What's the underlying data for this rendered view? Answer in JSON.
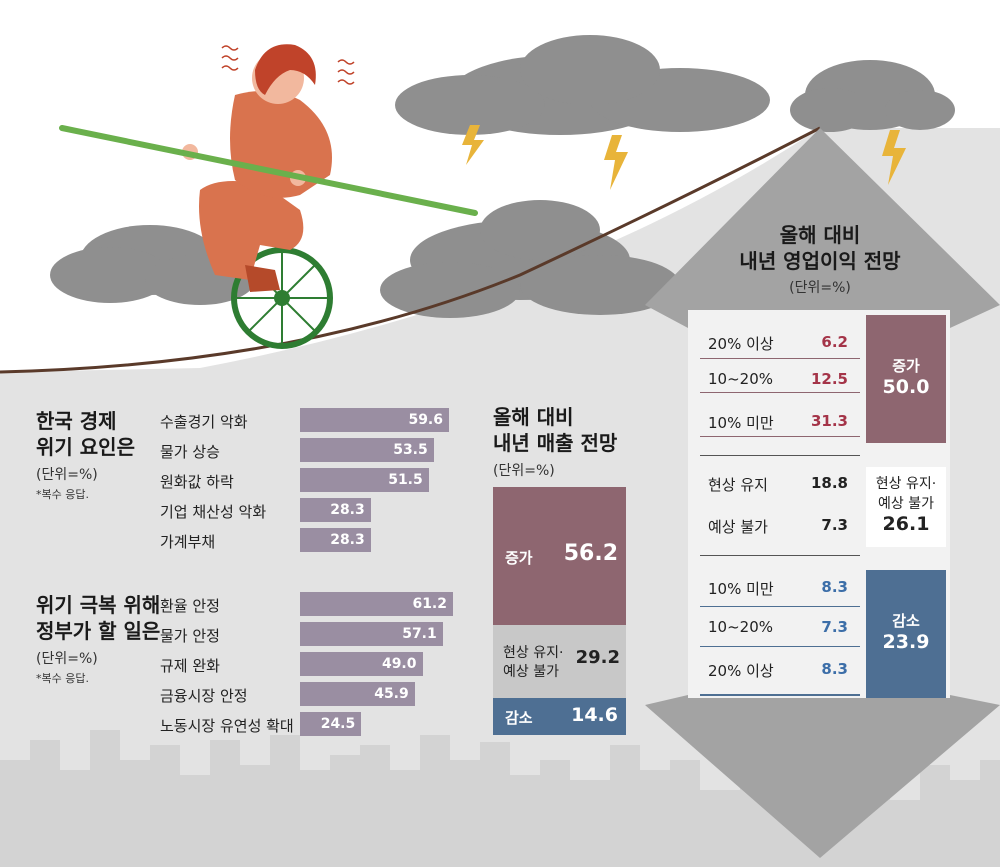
{
  "crisis_factors": {
    "title_line1": "한국 경제",
    "title_line2": "위기 요인은",
    "unit": "(단위=%)",
    "note": "*복수 응답."
  },
  "gov_tasks": {
    "title_line1": "위기 극복 위해",
    "title_line2": "정부가 할 일은",
    "unit": "(단위=%)",
    "note": "*복수 응답."
  },
  "sales": {
    "title_line1": "올해 대비",
    "title_line2": "내년 매출 전망",
    "unit": "(단위=%)",
    "increase_label": "증가",
    "increase_value": "56.2",
    "same_label_line1": "현상 유지·",
    "same_label_line2": "예상 불가",
    "same_value": "29.2",
    "decrease_label": "감소",
    "decrease_value": "14.6"
  },
  "profit": {
    "title_line1": "올해 대비",
    "title_line2": "내년 영업이익 전망",
    "unit": "(단위=%)",
    "increase_rows": [
      {
        "label": "20% 이상",
        "value": "6.2"
      },
      {
        "label": "10~20%",
        "value": "12.5"
      },
      {
        "label": "10% 미만",
        "value": "31.3"
      }
    ],
    "increase_box_label": "증가",
    "increase_box_value": "50.0",
    "same_rows": [
      {
        "label": "현상 유지",
        "value": "18.8"
      },
      {
        "label": "예상 불가",
        "value": "7.3"
      }
    ],
    "same_box_line1": "현상 유지·",
    "same_box_line2": "예상 불가",
    "same_box_value": "26.1",
    "decrease_rows": [
      {
        "label": "10% 미만",
        "value": "8.3"
      },
      {
        "label": "10~20%",
        "value": "7.3"
      },
      {
        "label": "20% 이상",
        "value": "8.3"
      }
    ],
    "decrease_box_label": "감소",
    "decrease_box_value": "23.9"
  },
  "colors": {
    "bar": "#9a8ea2",
    "increase": "#8e6670",
    "same": "#c8c8c8",
    "decrease": "#4e6f93",
    "increase_text": "#a43448",
    "decrease_text": "#3c6ea8",
    "background_gray": "#e3e3e3"
  },
  "chart_data": [
    {
      "type": "bar",
      "orientation": "horizontal",
      "categories": [
        "수출경기 악화",
        "물가 상승",
        "원화값 하락",
        "기업 채산성 악화",
        "가계부채"
      ],
      "values": [
        59.6,
        53.5,
        51.5,
        28.3,
        28.3
      ]
    },
    {
      "type": "bar",
      "orientation": "horizontal",
      "categories": [
        "환율 안정",
        "물가 안정",
        "규제 완화",
        "금융시장 안정",
        "노동시장 유연성 확대"
      ],
      "values": [
        61.2,
        57.1,
        49.0,
        45.9,
        24.5
      ]
    }
  ]
}
